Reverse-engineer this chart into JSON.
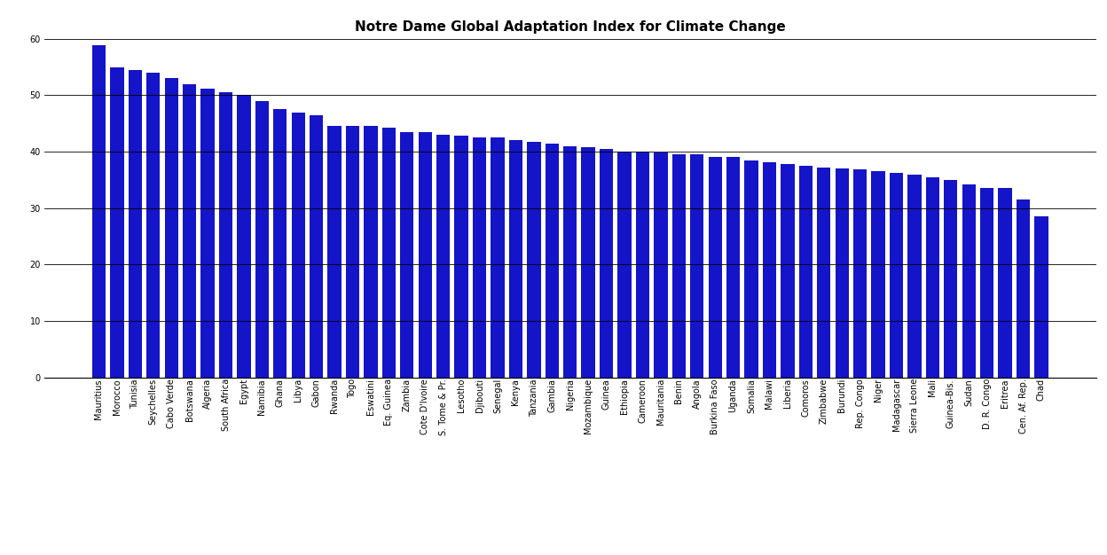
{
  "title": "Notre Dame Global Adaptation Index for Climate Change",
  "bar_color": "#1414c8",
  "categories": [
    "Mauritius",
    "Morocco",
    "Tunisia",
    "Seychelles",
    "Cabo Verde",
    "Botswana",
    "Algeria",
    "South Africa",
    "Egypt",
    "Namibia",
    "Ghana",
    "Libya",
    "Gabon",
    "Rwanda",
    "Togo",
    "Eswatini",
    "Eq. Guinea",
    "Zambia",
    "Cote D'Ivoire",
    "S. Tome & Pr.",
    "Lesotho",
    "Djibouti",
    "Senegal",
    "Kenya",
    "Tanzania",
    "Gambia",
    "Nigeria",
    "Mozambique",
    "Guinea",
    "Ethiopia",
    "Cameroon",
    "Mauritania",
    "Benin",
    "Angola",
    "Burkina Faso",
    "Uganda",
    "Somalia",
    "Malawi",
    "Liberia",
    "Comoros",
    "Zimbabwe",
    "Burundi",
    "Rep. Congo",
    "Niger",
    "Madagascar",
    "Sierra Leone",
    "Mali",
    "Guinea-Bis.",
    "Sudan",
    "D. R. Congo",
    "Eritrea",
    "Cen. Af. Rep.",
    "Chad"
  ],
  "values": [
    58.8,
    55.0,
    54.5,
    54.0,
    53.0,
    52.0,
    51.2,
    50.5,
    50.0,
    49.0,
    47.5,
    47.0,
    46.5,
    44.5,
    44.5,
    44.5,
    44.3,
    43.5,
    43.5,
    43.0,
    42.8,
    42.5,
    42.5,
    42.0,
    41.8,
    41.5,
    41.0,
    40.8,
    40.5,
    40.0,
    40.0,
    39.8,
    39.5,
    39.5,
    39.0,
    39.0,
    38.5,
    38.2,
    37.8,
    37.5,
    37.2,
    37.0,
    36.8,
    36.5,
    36.2,
    36.0,
    35.5,
    35.0,
    34.2,
    33.5,
    33.5,
    31.5,
    28.5
  ],
  "ylim": [
    0,
    60
  ],
  "yticks": [
    0,
    10,
    20,
    30,
    40,
    50,
    60
  ],
  "background_color": "#ffffff",
  "title_fontsize": 11,
  "tick_fontsize": 7,
  "figure_width": 12.48,
  "figure_height": 6.26,
  "dpi": 100
}
